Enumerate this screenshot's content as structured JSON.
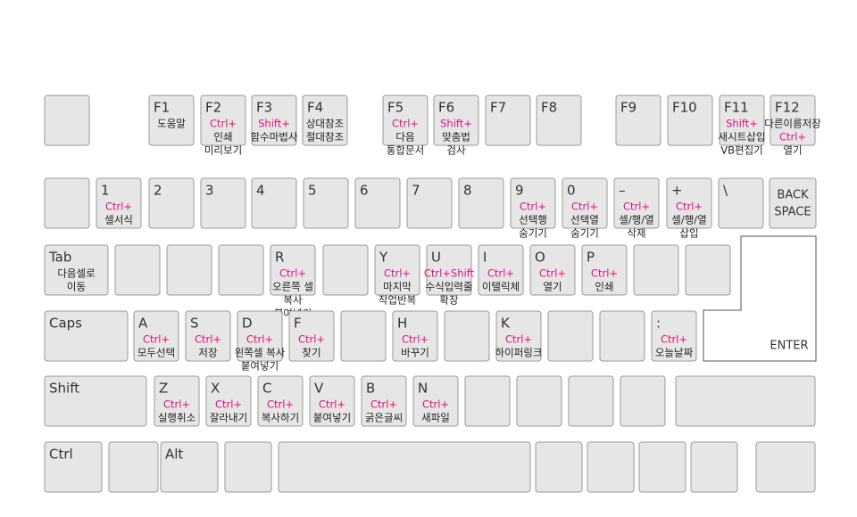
{
  "modifier_color": "#e0107a",
  "keys": [
    {
      "label": "F1",
      "lines": [
        {
          "text": "도움말",
          "kind": "action"
        }
      ]
    },
    {
      "label": "F2",
      "lines": [
        {
          "text": "Ctrl+",
          "kind": "modifier"
        },
        {
          "text": "인쇄",
          "kind": "action"
        },
        {
          "text": "미리보기",
          "kind": "action"
        }
      ]
    },
    {
      "label": "F3",
      "lines": [
        {
          "text": "Shift+",
          "kind": "modifier"
        },
        {
          "text": "함수마법사",
          "kind": "action"
        }
      ]
    },
    {
      "label": "F4",
      "lines": [
        {
          "text": "상대참조",
          "kind": "action"
        },
        {
          "text": "절대참조",
          "kind": "action"
        }
      ]
    },
    {
      "label": "F5",
      "lines": [
        {
          "text": "Ctrl+",
          "kind": "modifier"
        },
        {
          "text": "다음",
          "kind": "action"
        },
        {
          "text": "통합문서",
          "kind": "action"
        }
      ]
    },
    {
      "label": "F6",
      "lines": [
        {
          "text": "Shift+",
          "kind": "modifier"
        },
        {
          "text": "맞춤법",
          "kind": "action"
        },
        {
          "text": "검사",
          "kind": "action"
        }
      ]
    },
    {
      "label": "F7",
      "lines": []
    },
    {
      "label": "F8",
      "lines": []
    },
    {
      "label": "F9",
      "lines": []
    },
    {
      "label": "F10",
      "lines": []
    },
    {
      "label": "F11",
      "lines": [
        {
          "text": "Shift+",
          "kind": "modifier"
        },
        {
          "text": "새시트삽입",
          "kind": "action"
        },
        {
          "text": "VB편집기",
          "kind": "action"
        }
      ]
    },
    {
      "label": "F12",
      "lines": [
        {
          "text": "다른이름저장",
          "kind": "action"
        },
        {
          "text": "Ctrl+",
          "kind": "modifier"
        },
        {
          "text": "열기",
          "kind": "action"
        }
      ]
    },
    {
      "label": "1",
      "lines": [
        {
          "text": "Ctrl+",
          "kind": "modifier"
        },
        {
          "text": "셀서식",
          "kind": "action"
        }
      ]
    },
    {
      "label": "2",
      "lines": []
    },
    {
      "label": "3",
      "lines": []
    },
    {
      "label": "4",
      "lines": []
    },
    {
      "label": "5",
      "lines": []
    },
    {
      "label": "6",
      "lines": []
    },
    {
      "label": "7",
      "lines": []
    },
    {
      "label": "8",
      "lines": []
    },
    {
      "label": "9",
      "lines": [
        {
          "text": "Ctrl+",
          "kind": "modifier"
        },
        {
          "text": "선택행",
          "kind": "action"
        },
        {
          "text": "숨기기",
          "kind": "action"
        }
      ]
    },
    {
      "label": "0",
      "lines": [
        {
          "text": "Ctrl+",
          "kind": "modifier"
        },
        {
          "text": "선택열",
          "kind": "action"
        },
        {
          "text": "숨기기",
          "kind": "action"
        }
      ]
    },
    {
      "label": "–",
      "lines": [
        {
          "text": "Ctrl+",
          "kind": "modifier"
        },
        {
          "text": "셀/행/열",
          "kind": "action"
        },
        {
          "text": "삭제",
          "kind": "action"
        }
      ]
    },
    {
      "label": "+",
      "lines": [
        {
          "text": "Ctrl+",
          "kind": "modifier"
        },
        {
          "text": "셀/행/열",
          "kind": "action"
        },
        {
          "text": "삽입",
          "kind": "action"
        }
      ]
    },
    {
      "label": "\\",
      "lines": []
    },
    {
      "lines": [
        {
          "text": "BACK",
          "kind": "key"
        },
        {
          "text": "SPACE",
          "kind": "key"
        }
      ]
    },
    {
      "label": "Tab",
      "lines": [
        {
          "text": "다음셀로",
          "kind": "action"
        },
        {
          "text": "이동",
          "kind": "action"
        }
      ]
    },
    {
      "label": "R",
      "lines": [
        {
          "text": "Ctrl+",
          "kind": "modifier"
        },
        {
          "text": "오른쪽 셀",
          "kind": "action"
        },
        {
          "text": "복사",
          "kind": "action"
        },
        {
          "text": "붙여넣기",
          "kind": "action"
        }
      ]
    },
    {
      "label": "Y",
      "lines": [
        {
          "text": "Ctrl+",
          "kind": "modifier"
        },
        {
          "text": "마지막",
          "kind": "action"
        },
        {
          "text": "작업반복",
          "kind": "action"
        }
      ]
    },
    {
      "label": "U",
      "lines": [
        {
          "text": "Ctrl+Shift",
          "kind": "modifier"
        },
        {
          "text": "수식입력줄",
          "kind": "action"
        },
        {
          "text": "확장",
          "kind": "action"
        }
      ]
    },
    {
      "label": "I",
      "lines": [
        {
          "text": "Ctrl+",
          "kind": "modifier"
        },
        {
          "text": "이탤릭체",
          "kind": "action"
        }
      ]
    },
    {
      "label": "O",
      "lines": [
        {
          "text": "Ctrl+",
          "kind": "modifier"
        },
        {
          "text": "열기",
          "kind": "action"
        }
      ]
    },
    {
      "label": "P",
      "lines": [
        {
          "text": "Ctrl+",
          "kind": "modifier"
        },
        {
          "text": "인쇄",
          "kind": "action"
        }
      ]
    },
    {
      "label": "ENTER",
      "lines": []
    },
    {
      "label": "Caps",
      "lines": []
    },
    {
      "label": "A",
      "lines": [
        {
          "text": "Ctrl+",
          "kind": "modifier"
        },
        {
          "text": "모두선택",
          "kind": "action"
        }
      ]
    },
    {
      "label": "S",
      "lines": [
        {
          "text": "Ctrl+",
          "kind": "modifier"
        },
        {
          "text": "저장",
          "kind": "action"
        }
      ]
    },
    {
      "label": "D",
      "lines": [
        {
          "text": "Ctrl+",
          "kind": "modifier"
        },
        {
          "text": "왼쪽셀 복사",
          "kind": "action"
        },
        {
          "text": "붙여넣기",
          "kind": "action"
        }
      ]
    },
    {
      "label": "F",
      "lines": [
        {
          "text": "Ctrl+",
          "kind": "modifier"
        },
        {
          "text": "찾기",
          "kind": "action"
        }
      ]
    },
    {
      "label": "H",
      "lines": [
        {
          "text": "Ctrl+",
          "kind": "modifier"
        },
        {
          "text": "바꾸기",
          "kind": "action"
        }
      ]
    },
    {
      "label": "K",
      "lines": [
        {
          "text": "Ctrl+",
          "kind": "modifier"
        },
        {
          "text": "하이퍼링크",
          "kind": "action"
        }
      ]
    },
    {
      "label": ":",
      "lines": [
        {
          "text": "Ctrl+",
          "kind": "modifier"
        },
        {
          "text": "오늘날짜",
          "kind": "action"
        }
      ]
    },
    {
      "label": "Shift",
      "lines": []
    },
    {
      "label": "Z",
      "lines": [
        {
          "text": "Ctrl+",
          "kind": "modifier"
        },
        {
          "text": "실행취소",
          "kind": "action"
        }
      ]
    },
    {
      "label": "X",
      "lines": [
        {
          "text": "Ctrl+",
          "kind": "modifier"
        },
        {
          "text": "잘라내기",
          "kind": "action"
        }
      ]
    },
    {
      "label": "C",
      "lines": [
        {
          "text": "Ctrl+",
          "kind": "modifier"
        },
        {
          "text": "복사하기",
          "kind": "action"
        }
      ]
    },
    {
      "label": "V",
      "lines": [
        {
          "text": "Ctrl+",
          "kind": "modifier"
        },
        {
          "text": "붙여넣기",
          "kind": "action"
        }
      ]
    },
    {
      "label": "B",
      "lines": [
        {
          "text": "Ctrl+",
          "kind": "modifier"
        },
        {
          "text": "굵은글씨",
          "kind": "action"
        }
      ]
    },
    {
      "label": "N",
      "lines": [
        {
          "text": "Ctrl+",
          "kind": "modifier"
        },
        {
          "text": "새파일",
          "kind": "action"
        }
      ]
    },
    {
      "label": "Ctrl",
      "lines": []
    },
    {
      "label": "Alt",
      "lines": []
    }
  ]
}
